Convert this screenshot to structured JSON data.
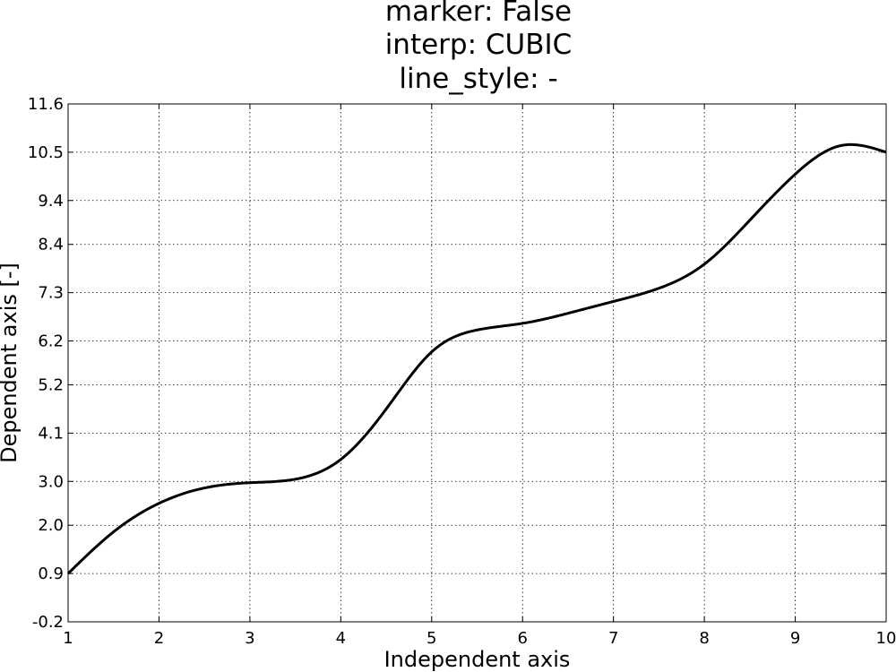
{
  "chart_data": {
    "type": "line",
    "title": [
      "marker: False",
      "interp: CUBIC",
      "line_style: -"
    ],
    "xlabel": "Independent axis",
    "ylabel": "Dependent axis [-]",
    "xlim": [
      1,
      10
    ],
    "ylim": [
      -0.2,
      11.6
    ],
    "xticks": [
      "1",
      "2",
      "3",
      "4",
      "5",
      "6",
      "7",
      "8",
      "9",
      "10"
    ],
    "yticks": [
      "-0.2",
      "0.9",
      "2.0",
      "3.0",
      "4.1",
      "5.2",
      "6.2",
      "7.3",
      "8.4",
      "9.4",
      "10.5",
      "11.6"
    ],
    "ytick_values": [
      -0.2,
      0.9,
      2.0,
      3.0,
      4.1,
      5.2,
      6.2,
      7.3,
      8.4,
      9.4,
      10.5,
      11.6
    ],
    "grid": true,
    "line_color": "#000000",
    "series": [
      {
        "x": [
          1,
          1.5,
          2,
          2.5,
          3,
          3.5,
          4,
          4.5,
          5,
          5.5,
          6,
          6.5,
          7,
          7.5,
          8,
          8.5,
          9,
          9.5,
          10
        ],
        "y": [
          0.9,
          1.85,
          2.5,
          2.85,
          2.97,
          3.05,
          3.5,
          4.65,
          5.95,
          6.45,
          6.6,
          6.83,
          7.1,
          7.4,
          7.95,
          8.95,
          10.0,
          10.65,
          10.5
        ]
      }
    ]
  }
}
